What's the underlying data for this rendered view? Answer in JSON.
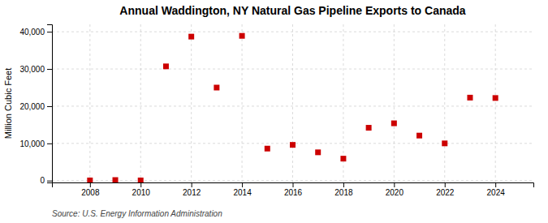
{
  "chart_data": {
    "type": "scatter",
    "title": "Annual Waddington, NY Natural Gas Pipeline Exports to Canada",
    "ylabel": "Million Cubic Feet",
    "source": "Source: U.S. Energy Information Administration",
    "x": [
      2008,
      2009,
      2010,
      2011,
      2012,
      2013,
      2014,
      2015,
      2016,
      2017,
      2018,
      2019,
      2020,
      2021,
      2022,
      2023,
      2024
    ],
    "values": [
      50,
      150,
      50,
      30700,
      38700,
      25000,
      38900,
      8600,
      9600,
      7600,
      5900,
      14200,
      15400,
      12100,
      10000,
      22300,
      22200
    ],
    "color": "#cc0000",
    "marker": "square",
    "xlim": [
      2006.5,
      2025.5
    ],
    "ylim": [
      -500,
      42000
    ],
    "xticks": [
      2008,
      2010,
      2012,
      2014,
      2016,
      2018,
      2020,
      2022,
      2024
    ],
    "yticks": [
      0,
      {
        "value": 10000,
        "label": "10,000"
      },
      {
        "value": 20000,
        "label": "20,000"
      },
      {
        "value": 30000,
        "label": "30,000"
      },
      {
        "value": 40000,
        "label": "40,000"
      }
    ],
    "grid": true
  }
}
